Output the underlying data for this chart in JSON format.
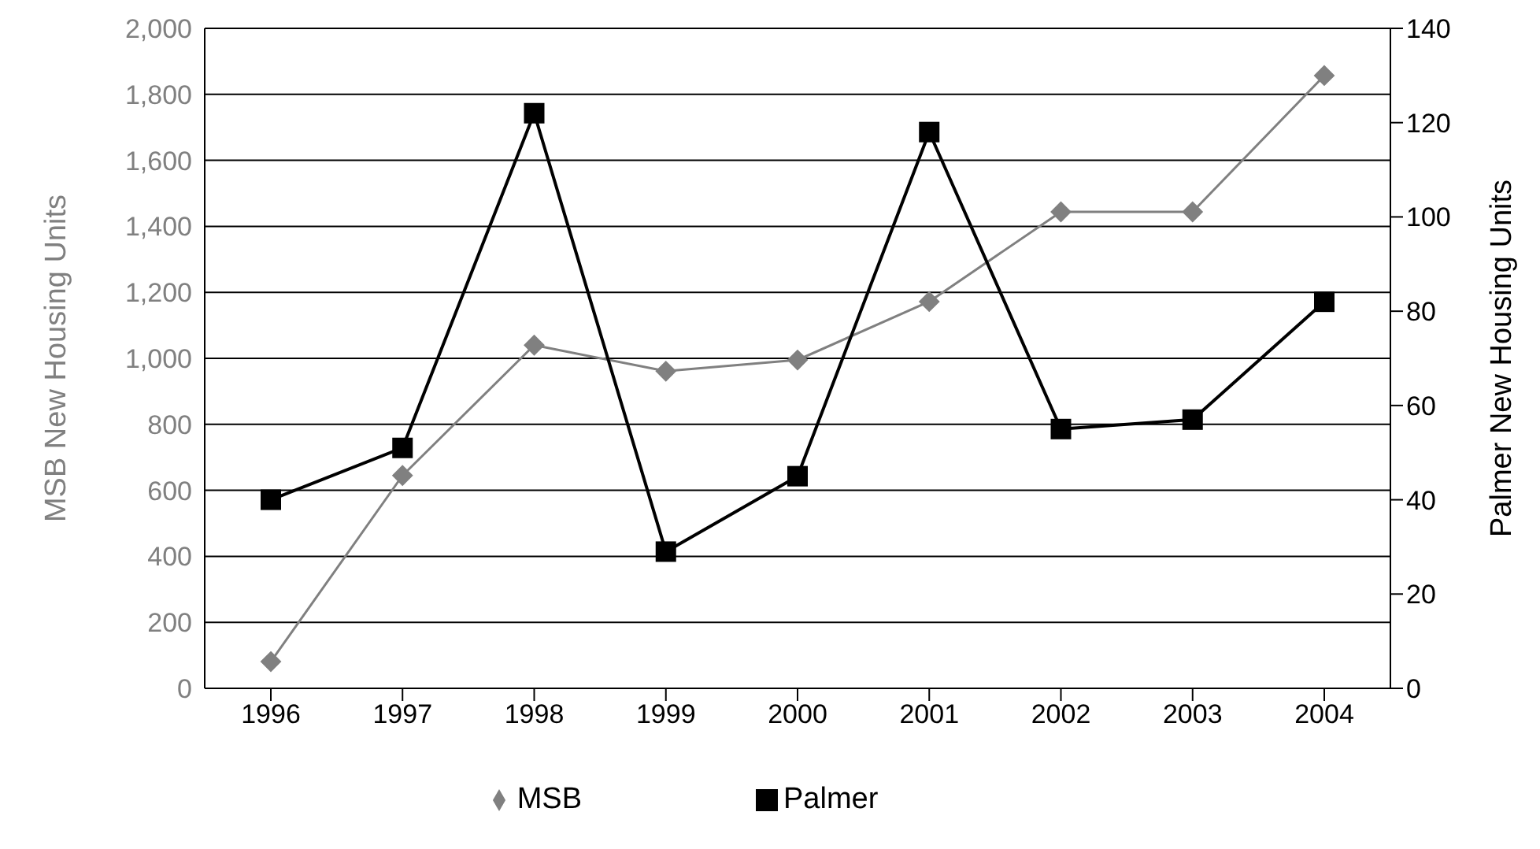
{
  "chart_data": {
    "type": "line",
    "categories": [
      "1996",
      "1997",
      "1998",
      "1999",
      "2000",
      "2001",
      "2002",
      "2003",
      "2004"
    ],
    "series": [
      {
        "name": "MSB",
        "color": "#808080",
        "marker": "diamond",
        "values": [
          81,
          645,
          1040,
          961,
          995,
          1172,
          1444,
          1444,
          1857
        ]
      },
      {
        "name": "Palmer",
        "color": "#000000",
        "marker": "square",
        "axis": "y2",
        "values": [
          40,
          51,
          122,
          29,
          45,
          118,
          55,
          57,
          82
        ]
      }
    ],
    "ylabel": "MSB New Housing Units",
    "y2label": "Palmer New Housing Units",
    "ylim": [
      0,
      2000
    ],
    "yticks": [
      0,
      200,
      400,
      600,
      800,
      {
        "value": 1000,
        "label": "1,000"
      },
      {
        "value": 1200,
        "label": "1,200"
      },
      {
        "value": 1400,
        "label": "1,400"
      },
      {
        "value": 1600,
        "label": "1,600"
      },
      {
        "value": 1800,
        "label": "1,800"
      },
      {
        "value": 2000,
        "label": "2,000"
      }
    ],
    "y2lim": [
      0,
      140
    ],
    "y2ticks": [
      0,
      20,
      40,
      60,
      80,
      100,
      120,
      140
    ],
    "grid": "y",
    "legend": "bottom"
  }
}
